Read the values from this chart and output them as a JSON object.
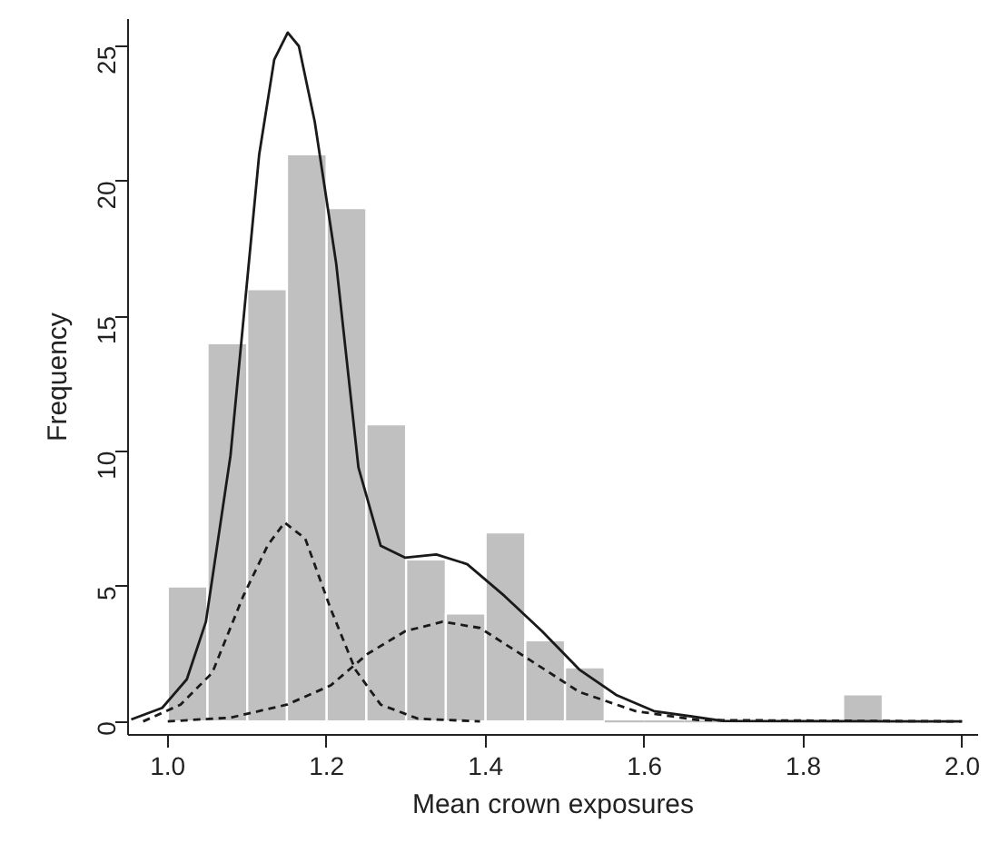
{
  "chart_data": {
    "type": "histogram",
    "xlabel": "Mean crown exposures",
    "ylabel": "Frequency",
    "bins": [
      1.0,
      1.05,
      1.1,
      1.15,
      1.2,
      1.25,
      1.3,
      1.35,
      1.4,
      1.45,
      1.5,
      1.55,
      1.6,
      1.65,
      1.7,
      1.75,
      1.8,
      1.85,
      1.9
    ],
    "values": [
      5,
      14,
      16,
      21,
      19,
      11,
      6,
      4,
      7,
      3,
      2,
      0,
      0,
      0,
      0,
      0,
      0,
      1
    ],
    "color": "#c0c0c0",
    "series": [
      {
        "type": "line",
        "color": "#1a1a1a",
        "line_style": "solid",
        "x": [
          0.954,
          0.993,
          1.024,
          1.048,
          1.079,
          1.115,
          1.134,
          1.151,
          1.165,
          1.185,
          1.212,
          1.24,
          1.268,
          1.299,
          1.338,
          1.377,
          1.424,
          1.471,
          1.518,
          1.565,
          1.612,
          1.699,
          1.999
        ],
        "values": [
          0.07,
          0.5,
          1.56,
          3.69,
          9.85,
          20.97,
          24.5,
          25.5,
          25.0,
          22.2,
          16.95,
          9.4,
          6.5,
          6.06,
          6.18,
          5.82,
          4.64,
          3.34,
          1.92,
          0.97,
          0.38,
          0.02,
          0
        ]
      },
      {
        "type": "line",
        "color": "#1a1a1a",
        "line_style": "dashed",
        "x": [
          0.969,
          1.016,
          1.056,
          1.095,
          1.126,
          1.147,
          1.173,
          1.205,
          1.236,
          1.268,
          1.315,
          1.393
        ],
        "values": [
          0,
          0.62,
          1.8,
          4.64,
          6.53,
          7.36,
          6.77,
          4.17,
          1.92,
          0.62,
          0.1,
          0
        ]
      },
      {
        "type": "line",
        "color": "#1a1a1a",
        "line_style": "dashed",
        "x": [
          1.0,
          1.079,
          1.15,
          1.205,
          1.252,
          1.299,
          1.346,
          1.393,
          1.456,
          1.518,
          1.589,
          1.667,
          2.0
        ],
        "values": [
          0,
          0.14,
          0.62,
          1.33,
          2.51,
          3.34,
          3.69,
          3.46,
          2.27,
          1.09,
          0.38,
          0.05,
          0
        ]
      }
    ],
    "xlim": [
      0.95,
      2.02
    ],
    "ylim": [
      -0.5,
      26
    ],
    "xticks": [
      {
        "value": 1,
        "label": "1.0"
      },
      1.2,
      1.4,
      1.6,
      1.8,
      {
        "value": 2,
        "label": "2.0"
      }
    ],
    "yticks": [
      0,
      5,
      10,
      15,
      20,
      25
    ],
    "grid": false
  }
}
